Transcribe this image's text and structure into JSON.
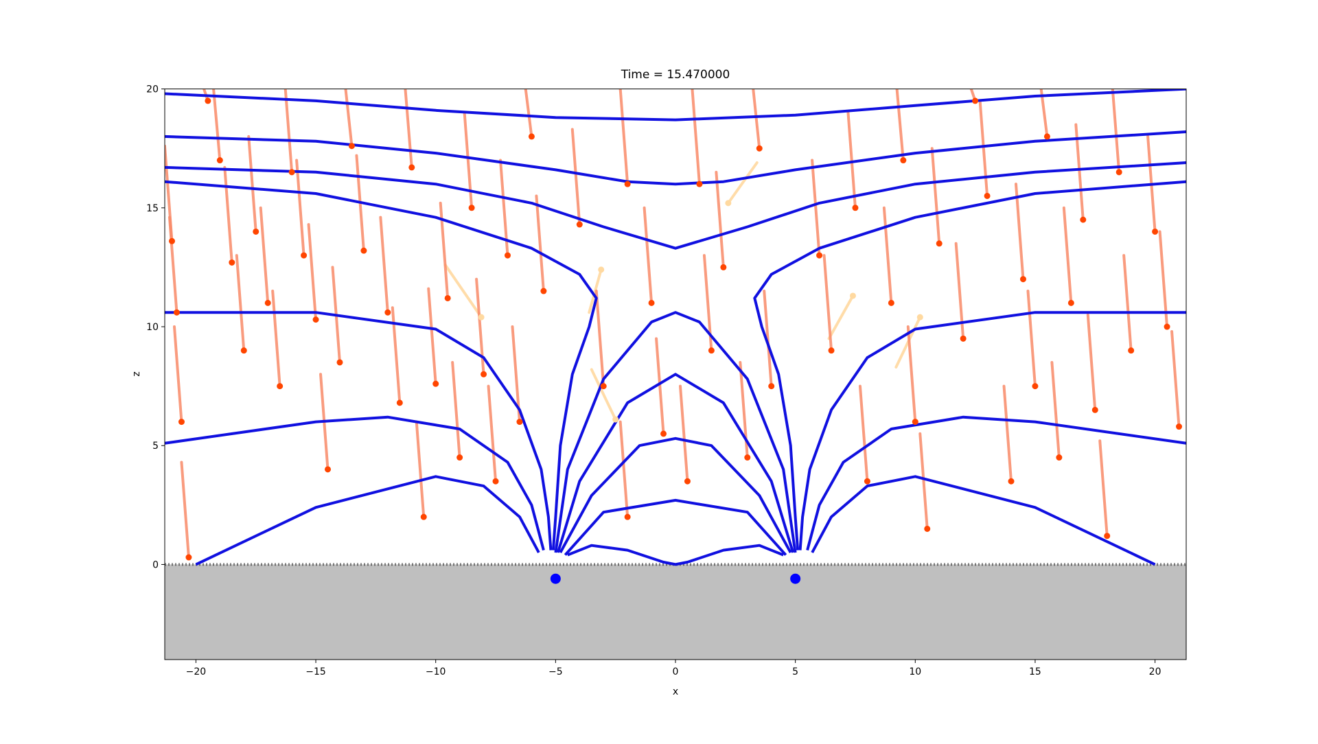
{
  "chart_data": {
    "type": "field",
    "title": "Time = 15.470000",
    "x_label": "x",
    "y_label": "z",
    "xlim": [
      -21.3,
      21.3
    ],
    "ylim": [
      -4,
      20
    ],
    "xticks": [
      {
        "value": -20,
        "label": "−20"
      },
      {
        "value": -15,
        "label": "−15"
      },
      {
        "value": -10,
        "label": "−10"
      },
      {
        "value": -5,
        "label": "−5"
      },
      0,
      5,
      10,
      15,
      20
    ],
    "yticks": [
      0,
      5,
      10,
      15,
      20
    ],
    "surface_z": 0,
    "surface_color": "#bfbfbf",
    "line_color": "#1010e0",
    "lines": [
      {
        "x": [
          -21.3,
          -15,
          -10,
          -5,
          0,
          5,
          10,
          15,
          21.3
        ],
        "y": [
          19.8,
          19.5,
          19.1,
          18.8,
          18.7,
          18.9,
          19.3,
          19.7,
          20.0
        ]
      },
      {
        "x": [
          -21.3,
          -15,
          -10,
          -5,
          -2,
          0,
          2,
          5,
          10,
          15,
          21.3
        ],
        "y": [
          18.0,
          17.8,
          17.3,
          16.6,
          16.1,
          16.0,
          16.1,
          16.6,
          17.3,
          17.8,
          18.2
        ]
      },
      {
        "x": [
          -21.3,
          -15,
          -10,
          -6,
          -3,
          0,
          3,
          6,
          10,
          15,
          21.3
        ],
        "y": [
          16.7,
          16.5,
          16.0,
          15.2,
          14.2,
          13.3,
          14.2,
          15.2,
          16.0,
          16.5,
          16.9
        ]
      },
      {
        "x": [
          -21.3,
          -15,
          -10,
          -6,
          -4,
          -3.3,
          -3.6,
          -4.3,
          -4.8,
          -5.0,
          -5.1
        ],
        "y": [
          16.1,
          15.6,
          14.6,
          13.3,
          12.2,
          11.2,
          10,
          8,
          5,
          2,
          0.6
        ]
      },
      {
        "x": [
          21.3,
          15,
          10,
          6,
          4,
          3.3,
          3.6,
          4.3,
          4.8,
          5.0,
          5.1
        ],
        "y": [
          16.1,
          15.6,
          14.6,
          13.3,
          12.2,
          11.2,
          10,
          8,
          5,
          2,
          0.6
        ]
      },
      {
        "x": [
          -21.3,
          -15,
          -10,
          -8,
          -6.5,
          -5.6,
          -5.3,
          -5.2
        ],
        "y": [
          10.6,
          10.6,
          9.9,
          8.7,
          6.5,
          4,
          2,
          0.6
        ]
      },
      {
        "x": [
          21.3,
          15,
          10,
          8,
          6.5,
          5.6,
          5.3,
          5.2
        ],
        "y": [
          10.6,
          10.6,
          9.9,
          8.7,
          6.5,
          4,
          2,
          0.6
        ]
      },
      {
        "x": [
          -21.3,
          -15,
          -12,
          -9,
          -7,
          -6,
          -5.5
        ],
        "y": [
          5.1,
          6.0,
          6.2,
          5.7,
          4.3,
          2.5,
          0.6
        ]
      },
      {
        "x": [
          21.3,
          15,
          12,
          9,
          7,
          6,
          5.5
        ],
        "y": [
          5.1,
          6.0,
          6.2,
          5.7,
          4.3,
          2.5,
          0.6
        ]
      },
      {
        "x": [
          -20,
          -15,
          -10,
          -8,
          -6.5,
          -5.7
        ],
        "y": [
          0,
          2.4,
          3.7,
          3.3,
          2,
          0.5
        ]
      },
      {
        "x": [
          20,
          15,
          10,
          8,
          6.5,
          5.7
        ],
        "y": [
          0,
          2.4,
          3.7,
          3.3,
          2,
          0.5
        ]
      },
      {
        "x": [
          -5,
          -4.5,
          -3,
          -1,
          0,
          1,
          3,
          4.5,
          5
        ],
        "y": [
          0.5,
          4,
          7.8,
          10.2,
          10.6,
          10.2,
          7.8,
          4,
          0.5
        ]
      },
      {
        "x": [
          -4.9,
          -4,
          -2,
          0,
          2,
          4,
          4.9
        ],
        "y": [
          0.5,
          3.5,
          6.8,
          8,
          6.8,
          3.5,
          0.5
        ]
      },
      {
        "x": [
          -4.8,
          -3.5,
          -1.5,
          0,
          1.5,
          3.5,
          4.8
        ],
        "y": [
          0.5,
          2.9,
          5,
          5.3,
          5,
          2.9,
          0.5
        ]
      },
      {
        "x": [
          -4.6,
          -3,
          0,
          3,
          4.6
        ],
        "y": [
          0.4,
          2.2,
          2.7,
          2.2,
          0.4
        ]
      },
      {
        "x": [
          -4.5,
          -3.5,
          -2,
          -0.5,
          0,
          0.5,
          2,
          3.5,
          4.5
        ],
        "y": [
          0.4,
          0.8,
          0.6,
          0.1,
          0,
          0.1,
          0.6,
          0.8,
          0.4
        ]
      }
    ],
    "charge_color": "#0000ff",
    "charges": [
      {
        "x": -5,
        "y": -0.6
      },
      {
        "x": 5,
        "y": -0.6
      }
    ],
    "particle_color": "#ff4500",
    "trail_color": "#f98a68",
    "particles": [
      {
        "x": -21,
        "y": 13.6,
        "trail_x": -21.3,
        "trail_y": 17.6
      },
      {
        "x": -20.8,
        "y": 10.6,
        "trail_x": -21.1,
        "trail_y": 14.6
      },
      {
        "x": -20.6,
        "y": 6,
        "trail_x": -20.9,
        "trail_y": 10
      },
      {
        "x": -20.3,
        "y": 0.3,
        "trail_x": -20.6,
        "trail_y": 4.3
      },
      {
        "x": -19.5,
        "y": 19.5,
        "trail_x": -19.8,
        "trail_y": 20.4
      },
      {
        "x": -19,
        "y": 17,
        "trail_x": -19.3,
        "trail_y": 20.4
      },
      {
        "x": -18.5,
        "y": 12.7,
        "trail_x": -18.8,
        "trail_y": 16.7
      },
      {
        "x": -18,
        "y": 9,
        "trail_x": -18.3,
        "trail_y": 13
      },
      {
        "x": -17.5,
        "y": 14,
        "trail_x": -17.8,
        "trail_y": 18
      },
      {
        "x": -17,
        "y": 11,
        "trail_x": -17.3,
        "trail_y": 15
      },
      {
        "x": -16.5,
        "y": 7.5,
        "trail_x": -16.8,
        "trail_y": 11.5
      },
      {
        "x": -16,
        "y": 16.5,
        "trail_x": -16.3,
        "trail_y": 20.4
      },
      {
        "x": -15.5,
        "y": 13,
        "trail_x": -15.8,
        "trail_y": 17
      },
      {
        "x": -15,
        "y": 10.3,
        "trail_x": -15.3,
        "trail_y": 14.3
      },
      {
        "x": -14.5,
        "y": 4,
        "trail_x": -14.8,
        "trail_y": 8
      },
      {
        "x": -14,
        "y": 8.5,
        "trail_x": -14.3,
        "trail_y": 12.5
      },
      {
        "x": -13.5,
        "y": 17.6,
        "trail_x": -13.8,
        "trail_y": 20.4
      },
      {
        "x": -13,
        "y": 13.2,
        "trail_x": -13.3,
        "trail_y": 17.2
      },
      {
        "x": -12,
        "y": 10.6,
        "trail_x": -12.3,
        "trail_y": 14.6
      },
      {
        "x": -11.5,
        "y": 6.8,
        "trail_x": -11.8,
        "trail_y": 10.8
      },
      {
        "x": -11,
        "y": 16.7,
        "trail_x": -11.3,
        "trail_y": 20.4
      },
      {
        "x": -10.5,
        "y": 2,
        "trail_x": -10.8,
        "trail_y": 6
      },
      {
        "x": -10,
        "y": 7.6,
        "trail_x": -10.3,
        "trail_y": 11.6
      },
      {
        "x": -9.5,
        "y": 11.2,
        "trail_x": -9.8,
        "trail_y": 15.2
      },
      {
        "x": -9,
        "y": 4.5,
        "trail_x": -9.3,
        "trail_y": 8.5
      },
      {
        "x": -8.5,
        "y": 15,
        "trail_x": -8.8,
        "trail_y": 19
      },
      {
        "x": -8,
        "y": 8,
        "trail_x": -8.3,
        "trail_y": 12
      },
      {
        "x": -7.5,
        "y": 3.5,
        "trail_x": -7.8,
        "trail_y": 7.5
      },
      {
        "x": -7,
        "y": 13,
        "trail_x": -7.3,
        "trail_y": 17
      },
      {
        "x": -6.5,
        "y": 6,
        "trail_x": -6.8,
        "trail_y": 10
      },
      {
        "x": -6,
        "y": 18,
        "trail_x": -6.3,
        "trail_y": 20.4
      },
      {
        "x": -5.5,
        "y": 11.5,
        "trail_x": -5.8,
        "trail_y": 15.5
      },
      {
        "x": -4,
        "y": 14.3,
        "trail_x": -4.3,
        "trail_y": 18.3
      },
      {
        "x": -3,
        "y": 7.5,
        "trail_x": -3.3,
        "trail_y": 11.5
      },
      {
        "x": -2,
        "y": 16,
        "trail_x": -2.3,
        "trail_y": 20
      },
      {
        "x": -2,
        "y": 2,
        "trail_x": -2.3,
        "trail_y": 6
      },
      {
        "x": -1,
        "y": 11,
        "trail_x": -1.3,
        "trail_y": 15
      },
      {
        "x": -0.5,
        "y": 5.5,
        "trail_x": -0.8,
        "trail_y": 9.5
      },
      {
        "x": 0.5,
        "y": 3.5,
        "trail_x": 0.2,
        "trail_y": 7.5
      },
      {
        "x": 1,
        "y": 16,
        "trail_x": 0.7,
        "trail_y": 20
      },
      {
        "x": 1.5,
        "y": 9,
        "trail_x": 1.2,
        "trail_y": 13
      },
      {
        "x": 2,
        "y": 12.5,
        "trail_x": 1.7,
        "trail_y": 16.5
      },
      {
        "x": 3,
        "y": 4.5,
        "trail_x": 2.7,
        "trail_y": 8.5
      },
      {
        "x": 3.5,
        "y": 17.5,
        "trail_x": 3.2,
        "trail_y": 20.4
      },
      {
        "x": 4,
        "y": 7.5,
        "trail_x": 3.7,
        "trail_y": 11.5
      },
      {
        "x": 6,
        "y": 13,
        "trail_x": 5.7,
        "trail_y": 17
      },
      {
        "x": 6.5,
        "y": 9,
        "trail_x": 6.2,
        "trail_y": 13
      },
      {
        "x": 7.5,
        "y": 15,
        "trail_x": 7.2,
        "trail_y": 19
      },
      {
        "x": 8,
        "y": 3.5,
        "trail_x": 7.7,
        "trail_y": 7.5
      },
      {
        "x": 9,
        "y": 11,
        "trail_x": 8.7,
        "trail_y": 15
      },
      {
        "x": 9.5,
        "y": 17,
        "trail_x": 9.2,
        "trail_y": 20.4
      },
      {
        "x": 10,
        "y": 6,
        "trail_x": 9.7,
        "trail_y": 10
      },
      {
        "x": 10.5,
        "y": 1.5,
        "trail_x": 10.2,
        "trail_y": 5.5
      },
      {
        "x": 11,
        "y": 13.5,
        "trail_x": 10.7,
        "trail_y": 17.5
      },
      {
        "x": 12,
        "y": 9.5,
        "trail_x": 11.7,
        "trail_y": 13.5
      },
      {
        "x": 12.5,
        "y": 19.5,
        "trail_x": 12.2,
        "trail_y": 20.4
      },
      {
        "x": 13,
        "y": 15.5,
        "trail_x": 12.7,
        "trail_y": 19.5
      },
      {
        "x": 14,
        "y": 3.5,
        "trail_x": 13.7,
        "trail_y": 7.5
      },
      {
        "x": 14.5,
        "y": 12,
        "trail_x": 14.2,
        "trail_y": 16
      },
      {
        "x": 15,
        "y": 7.5,
        "trail_x": 14.7,
        "trail_y": 11.5
      },
      {
        "x": 15.5,
        "y": 18,
        "trail_x": 15.2,
        "trail_y": 20.4
      },
      {
        "x": 16,
        "y": 4.5,
        "trail_x": 15.7,
        "trail_y": 8.5
      },
      {
        "x": 16.5,
        "y": 11,
        "trail_x": 16.2,
        "trail_y": 15
      },
      {
        "x": 17,
        "y": 14.5,
        "trail_x": 16.7,
        "trail_y": 18.5
      },
      {
        "x": 17.5,
        "y": 6.5,
        "trail_x": 17.2,
        "trail_y": 10.5
      },
      {
        "x": 18,
        "y": 1.2,
        "trail_x": 17.7,
        "trail_y": 5.2
      },
      {
        "x": 18.5,
        "y": 16.5,
        "trail_x": 18.2,
        "trail_y": 20.4
      },
      {
        "x": 19,
        "y": 9,
        "trail_x": 18.7,
        "trail_y": 13
      },
      {
        "x": 20,
        "y": 14,
        "trail_x": 19.7,
        "trail_y": 18
      },
      {
        "x": 20.5,
        "y": 10,
        "trail_x": 20.2,
        "trail_y": 14
      },
      {
        "x": 21,
        "y": 5.8,
        "trail_x": 20.7,
        "trail_y": 9.8
      }
    ],
    "faded_color": "#ffd9a0",
    "faded_particles": [
      {
        "x": -8.1,
        "y": 10.4,
        "trail_x": -9.6,
        "trail_y": 12.6
      },
      {
        "x": -3.1,
        "y": 12.4,
        "trail_x": -3.6,
        "trail_y": 10.6
      },
      {
        "x": 2.2,
        "y": 15.2,
        "trail_x": 3.4,
        "trail_y": 16.9
      },
      {
        "x": 7.4,
        "y": 11.3,
        "trail_x": 6.4,
        "trail_y": 9.5
      },
      {
        "x": 10.2,
        "y": 10.4,
        "trail_x": 9.2,
        "trail_y": 8.3
      },
      {
        "x": -2.5,
        "y": 6.1,
        "trail_x": -3.5,
        "trail_y": 8.2
      }
    ]
  }
}
